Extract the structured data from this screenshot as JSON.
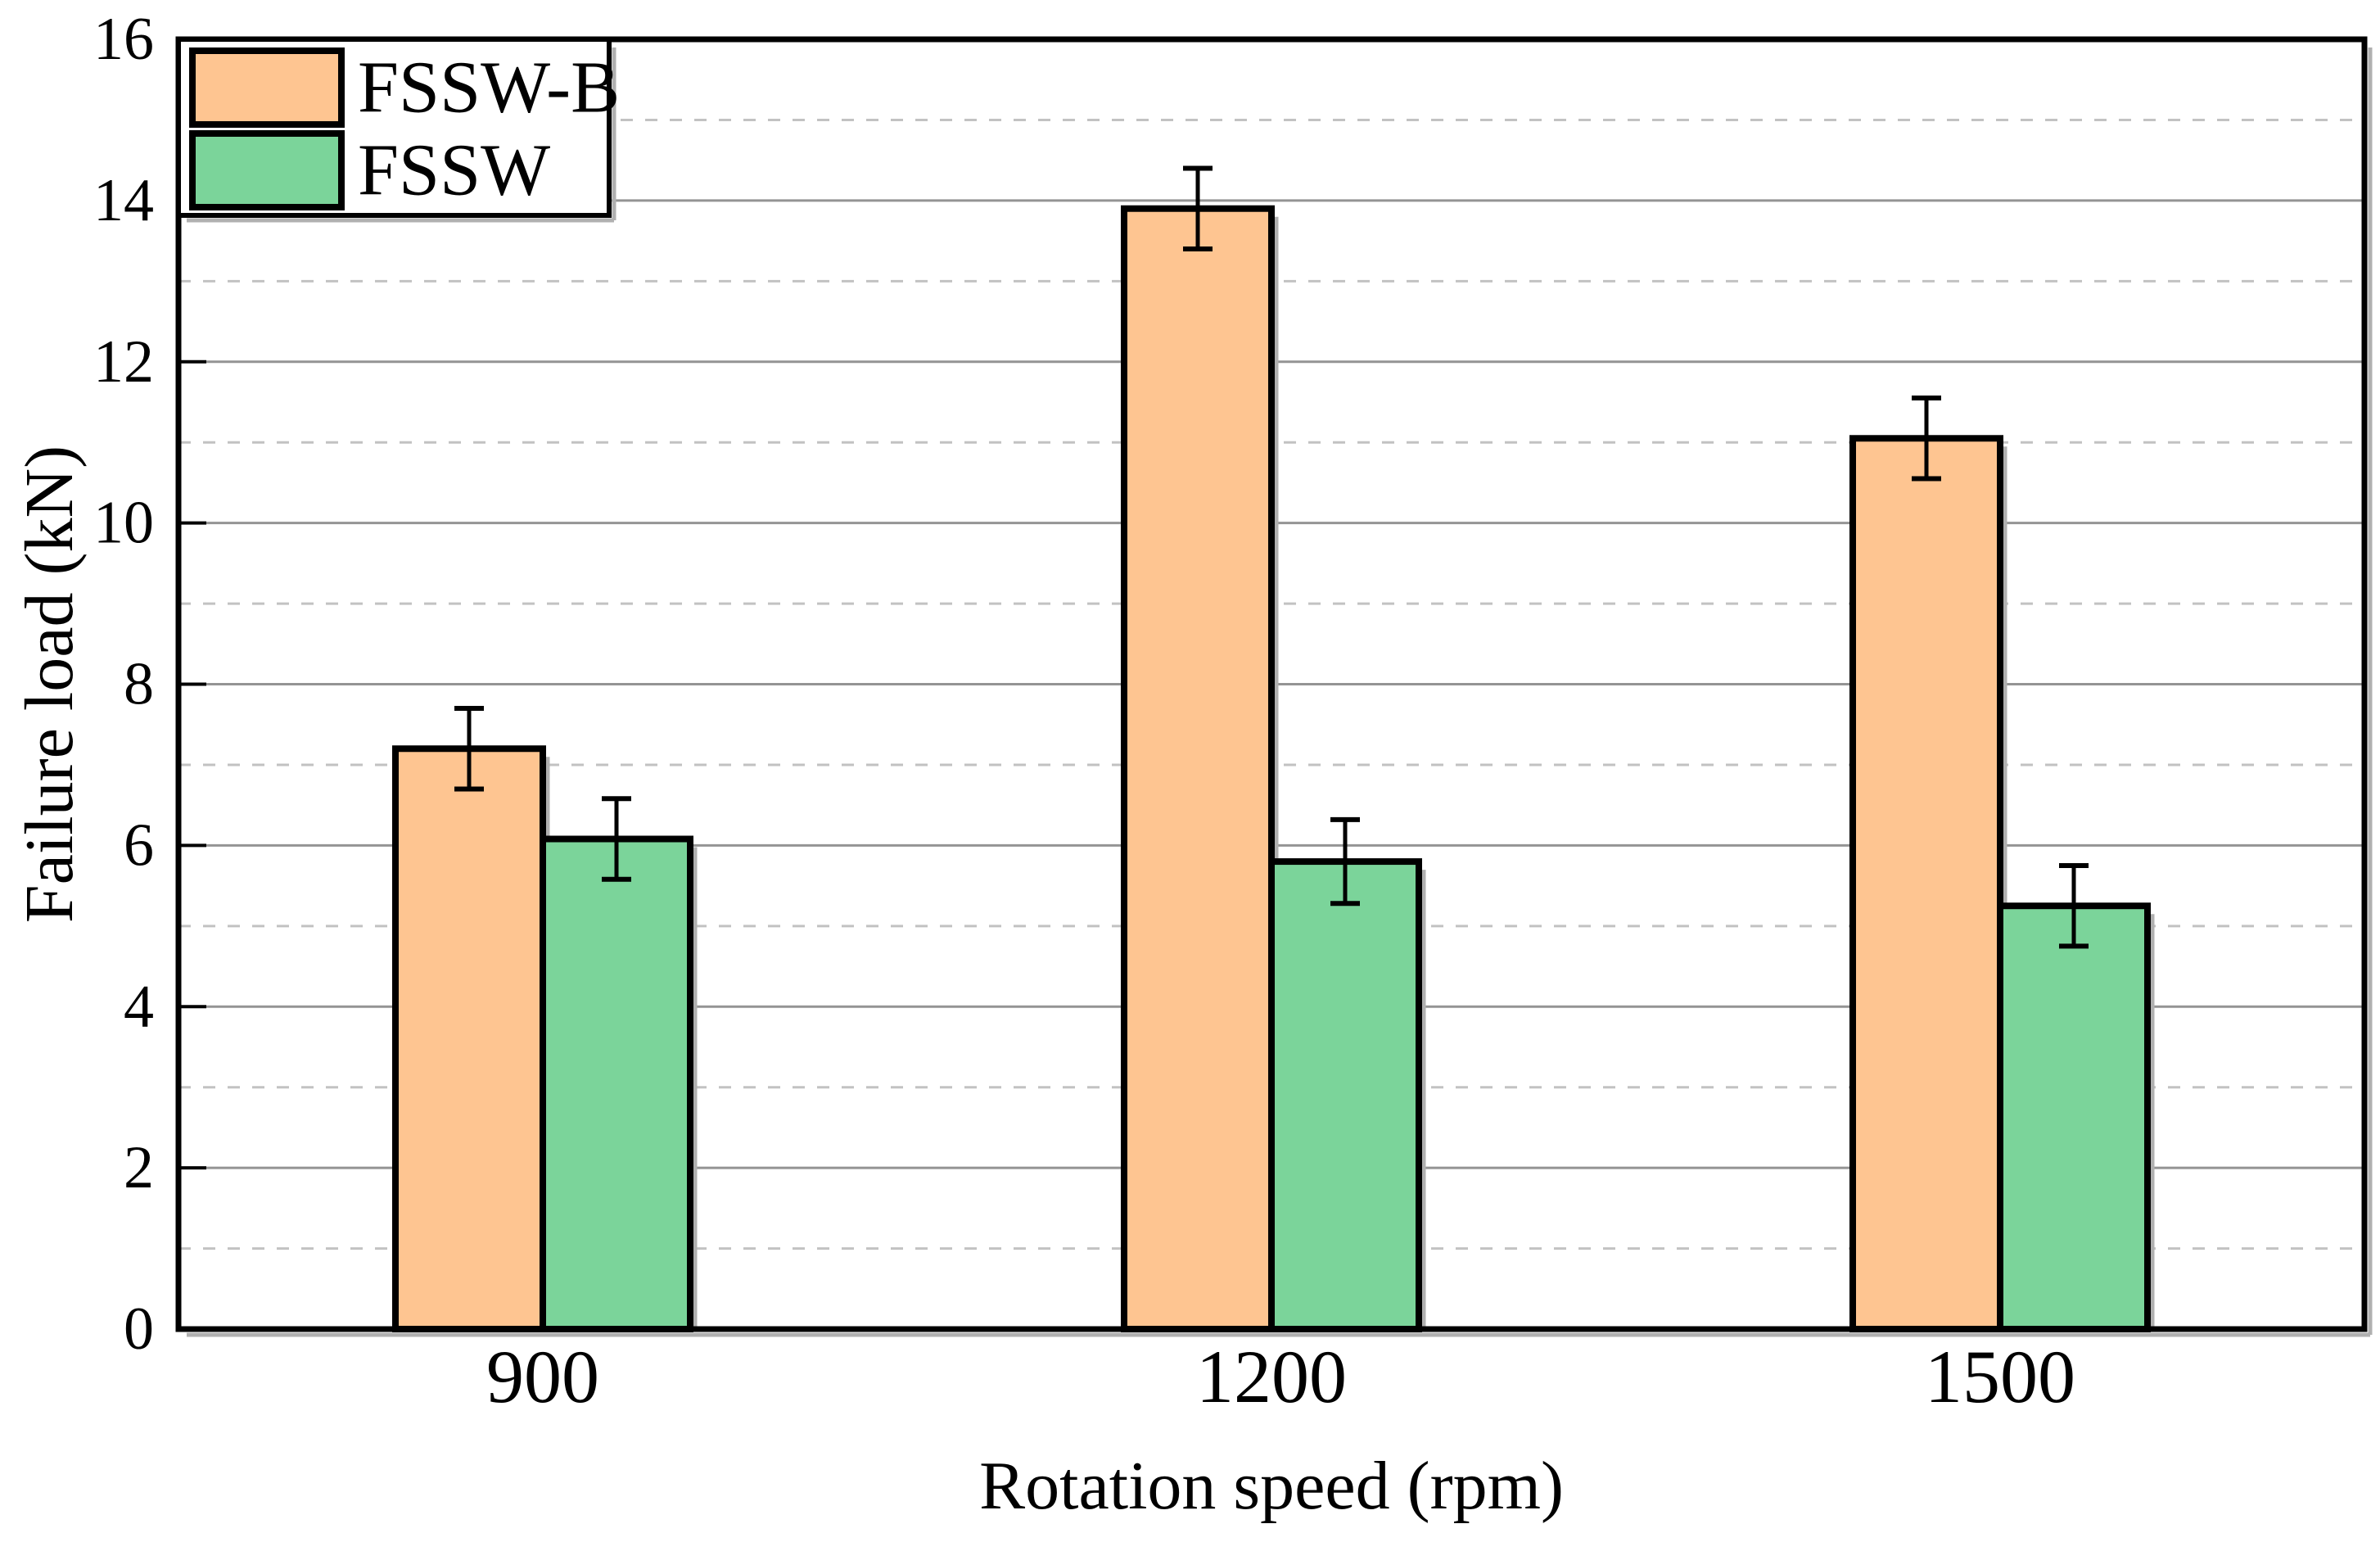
{
  "figure": {
    "background": "#ffffff",
    "frame_color": "#000000",
    "shadow_color": "#b0b0b0"
  },
  "chart_data": {
    "type": "bar",
    "title": "",
    "xlabel": "Rotation speed (rpm)",
    "ylabel": "Failure load (kN)",
    "categories": [
      "900",
      "1200",
      "1500"
    ],
    "series": [
      {
        "name": "FSSW-B",
        "color": "#FEC591",
        "border_color": "#000000",
        "values": [
          7.2,
          13.9,
          11.05
        ],
        "errors": [
          0.5,
          0.5,
          0.5
        ]
      },
      {
        "name": "FSSW",
        "color": "#7BD49A",
        "border_color": "#000000",
        "values": [
          6.08,
          5.8,
          5.25
        ],
        "errors": [
          0.5,
          0.52,
          0.5
        ]
      }
    ],
    "ylim": [
      0,
      16
    ],
    "ytick_step": 2,
    "yticks": [
      0,
      2,
      4,
      6,
      8,
      10,
      12,
      14,
      16
    ],
    "grid": {
      "major_color": "#949494",
      "major_style": "solid",
      "major_at": "even values",
      "minor_color": "#c2c2c2",
      "minor_style": "dashed",
      "minor_at": "odd values"
    },
    "legend": {
      "position": "top-left"
    }
  }
}
